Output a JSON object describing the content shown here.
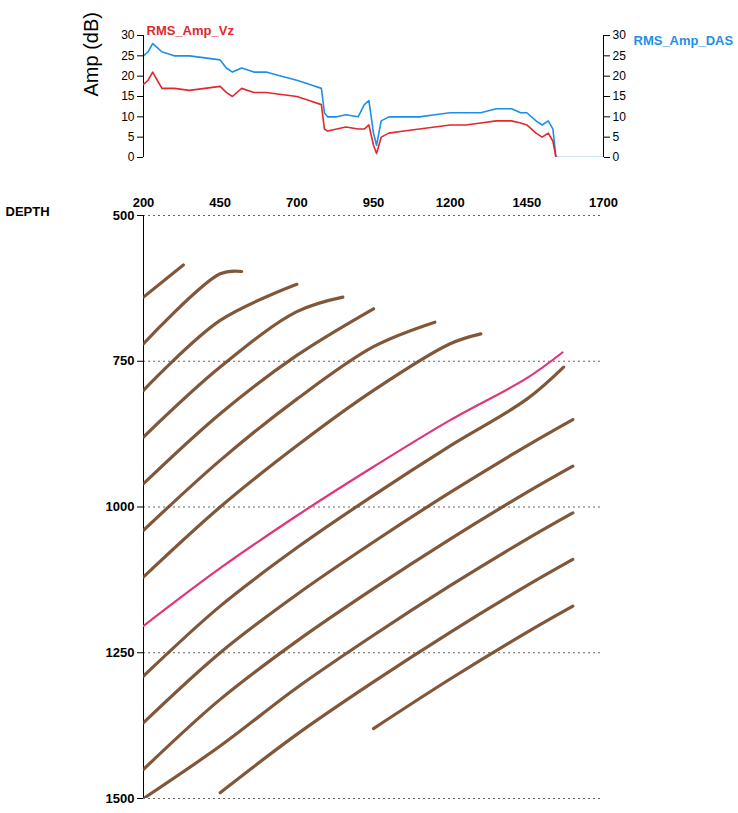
{
  "chart_data": [
    {
      "type": "line",
      "ylabel": "Amp (dB)",
      "x": [
        200,
        215,
        230,
        245,
        260,
        280,
        300,
        350,
        400,
        450,
        470,
        490,
        520,
        560,
        600,
        650,
        700,
        740,
        780,
        790,
        800,
        830,
        860,
        900,
        920,
        935,
        950,
        960,
        975,
        1000,
        1050,
        1100,
        1150,
        1200,
        1250,
        1300,
        1350,
        1400,
        1430,
        1450,
        1480,
        1500,
        1520,
        1535,
        1545,
        1550,
        1600,
        1650,
        1700
      ],
      "xlim": [
        200,
        1700
      ],
      "ylim": [
        0,
        30
      ],
      "yticks": [
        0,
        5,
        10,
        15,
        20,
        25,
        30
      ],
      "y2lim": [
        0,
        30
      ],
      "y2ticks": [
        0,
        5,
        10,
        15,
        20,
        25,
        30
      ],
      "tick_labels": "y",
      "series": [
        {
          "name": "RMS_Amp_DAS",
          "color": "#1e8fe8",
          "axis": "y2",
          "values": [
            25,
            26,
            28,
            27,
            26,
            25.5,
            25,
            25,
            24.5,
            24,
            22,
            21,
            22,
            21,
            21,
            20,
            19,
            18,
            17,
            11,
            10,
            10,
            10.5,
            10,
            13,
            14,
            6,
            3,
            9,
            10,
            10,
            10,
            10.5,
            11,
            11,
            11,
            12,
            12,
            11,
            11,
            9,
            8,
            9,
            7,
            0,
            0,
            0,
            0,
            0
          ]
        },
        {
          "name": "RMS_Amp_Vz",
          "color": "#e0282e",
          "values": [
            18,
            19,
            21,
            19,
            17,
            17,
            17,
            16.5,
            17,
            17.5,
            16,
            15,
            17,
            16,
            16,
            15.5,
            15,
            14,
            13,
            7,
            6.5,
            7,
            7.5,
            7,
            7,
            8,
            3,
            1,
            5,
            6,
            6.5,
            7,
            7.5,
            8,
            8,
            8.5,
            9,
            9,
            8.5,
            8,
            6,
            5,
            6,
            4,
            0,
            0,
            null,
            null,
            null
          ]
        }
      ]
    },
    {
      "type": "line",
      "xlabel": "DEPTH",
      "xlim": [
        200,
        1700
      ],
      "xticks": [
        200,
        450,
        700,
        950,
        1200,
        1450,
        1700
      ],
      "ylim": [
        500,
        1500
      ],
      "yticks": [
        500,
        750,
        1000,
        1250,
        1500
      ],
      "grid": true,
      "line_style": "dotted",
      "series": [
        {
          "color": "#6b3a16",
          "values": [
            [
              200,
              640
            ],
            [
              330,
              585
            ]
          ]
        },
        {
          "color": "#6b3a16",
          "values": [
            [
              200,
              720
            ],
            [
              450,
              600
            ],
            [
              520,
              596
            ]
          ]
        },
        {
          "color": "#6b3a16",
          "values": [
            [
              200,
              800
            ],
            [
              450,
              680
            ],
            [
              700,
              618
            ]
          ]
        },
        {
          "color": "#6b3a16",
          "values": [
            [
              200,
              880
            ],
            [
              450,
              760
            ],
            [
              700,
              665
            ],
            [
              850,
              640
            ]
          ]
        },
        {
          "color": "#6b3a16",
          "values": [
            [
              200,
              960
            ],
            [
              450,
              840
            ],
            [
              700,
              740
            ],
            [
              950,
              660
            ]
          ]
        },
        {
          "color": "#6b3a16",
          "values": [
            [
              200,
              1040
            ],
            [
              450,
              920
            ],
            [
              700,
              815
            ],
            [
              950,
              725
            ],
            [
              1150,
              683
            ]
          ]
        },
        {
          "color": "#6b3a16",
          "values": [
            [
              200,
              1120
            ],
            [
              450,
              1000
            ],
            [
              700,
              895
            ],
            [
              950,
              800
            ],
            [
              1200,
              720
            ],
            [
              1300,
              703
            ]
          ]
        },
        {
          "color": "#6b3a16",
          "values": [
            [
              200,
              1290
            ],
            [
              450,
              1170
            ],
            [
              700,
              1070
            ],
            [
              950,
              980
            ],
            [
              1200,
              895
            ],
            [
              1450,
              815
            ],
            [
              1570,
              760
            ]
          ]
        },
        {
          "color": "#6b3a16",
          "values": [
            [
              200,
              1370
            ],
            [
              450,
              1250
            ],
            [
              700,
              1150
            ],
            [
              950,
              1060
            ],
            [
              1200,
              975
            ],
            [
              1450,
              895
            ],
            [
              1600,
              850
            ]
          ]
        },
        {
          "color": "#6b3a16",
          "values": [
            [
              200,
              1450
            ],
            [
              450,
              1330
            ],
            [
              700,
              1230
            ],
            [
              950,
              1140
            ],
            [
              1200,
              1055
            ],
            [
              1450,
              975
            ],
            [
              1600,
              930
            ]
          ]
        },
        {
          "color": "#6b3a16",
          "values": [
            [
              200,
              1500
            ],
            [
              450,
              1410
            ],
            [
              700,
              1310
            ],
            [
              950,
              1220
            ],
            [
              1200,
              1135
            ],
            [
              1450,
              1055
            ],
            [
              1600,
              1010
            ]
          ]
        },
        {
          "color": "#6b3a16",
          "values": [
            [
              450,
              1490
            ],
            [
              700,
              1390
            ],
            [
              950,
              1300
            ],
            [
              1200,
              1215
            ],
            [
              1450,
              1135
            ],
            [
              1600,
              1090
            ]
          ]
        },
        {
          "color": "#6b3a16",
          "values": [
            [
              950,
              1380
            ],
            [
              1200,
              1295
            ],
            [
              1450,
              1215
            ],
            [
              1600,
              1170
            ]
          ]
        },
        {
          "color": "#e0357a",
          "values": [
            [
              200,
              1204
            ],
            [
              450,
              1105
            ],
            [
              700,
              1015
            ],
            [
              950,
              931
            ],
            [
              1200,
              851
            ],
            [
              1450,
              779
            ],
            [
              1566,
              735
            ]
          ]
        }
      ]
    }
  ]
}
